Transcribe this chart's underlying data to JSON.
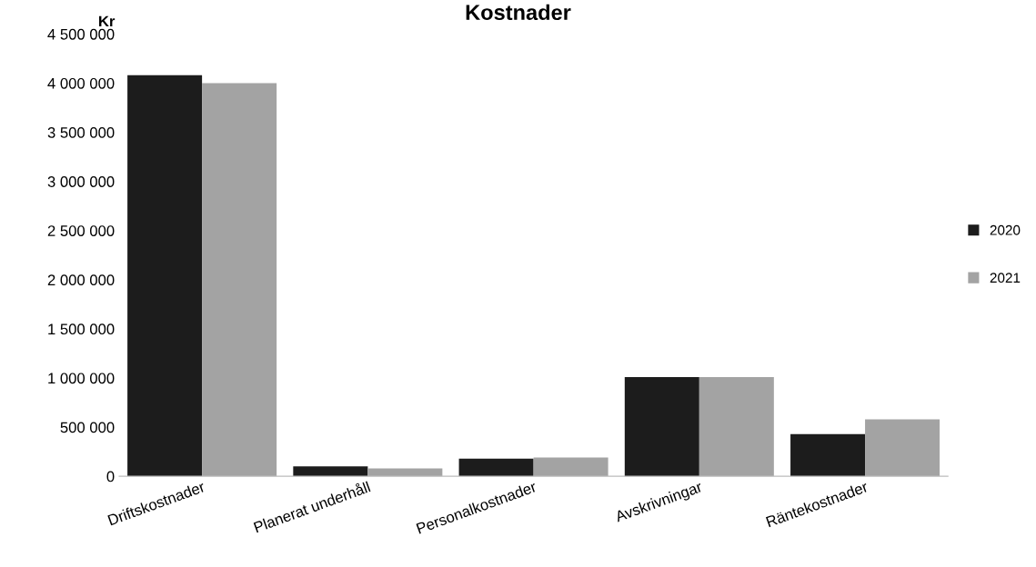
{
  "chart_data": {
    "type": "bar",
    "title": "Kostnader",
    "ylabel": "Kr",
    "categories": [
      "Driftskostnader",
      "Planerat underhåll",
      "Personalkostnader",
      "Avskrivningar",
      "Räntekostnader"
    ],
    "series": [
      {
        "name": "2020",
        "color": "#1c1c1c",
        "values": [
          4080000,
          100000,
          180000,
          1010000,
          430000
        ]
      },
      {
        "name": "2021",
        "color": "#a3a3a3",
        "values": [
          4000000,
          80000,
          190000,
          1010000,
          580000
        ]
      }
    ],
    "ylim": [
      0,
      4500000
    ],
    "yticks": [
      0,
      {
        "value": 500000,
        "label": "500 000"
      },
      {
        "value": 1000000,
        "label": "1 000 000"
      },
      {
        "value": 1500000,
        "label": "1 500 000"
      },
      {
        "value": 2000000,
        "label": "2 000 000"
      },
      {
        "value": 2500000,
        "label": "2 500 000"
      },
      {
        "value": 3000000,
        "label": "3 000 000"
      },
      {
        "value": 3500000,
        "label": "3 500 000"
      },
      {
        "value": 4000000,
        "label": "4 000 000"
      },
      {
        "value": 4500000,
        "label": "4 500 000"
      }
    ],
    "grid": false,
    "legend": "right"
  }
}
